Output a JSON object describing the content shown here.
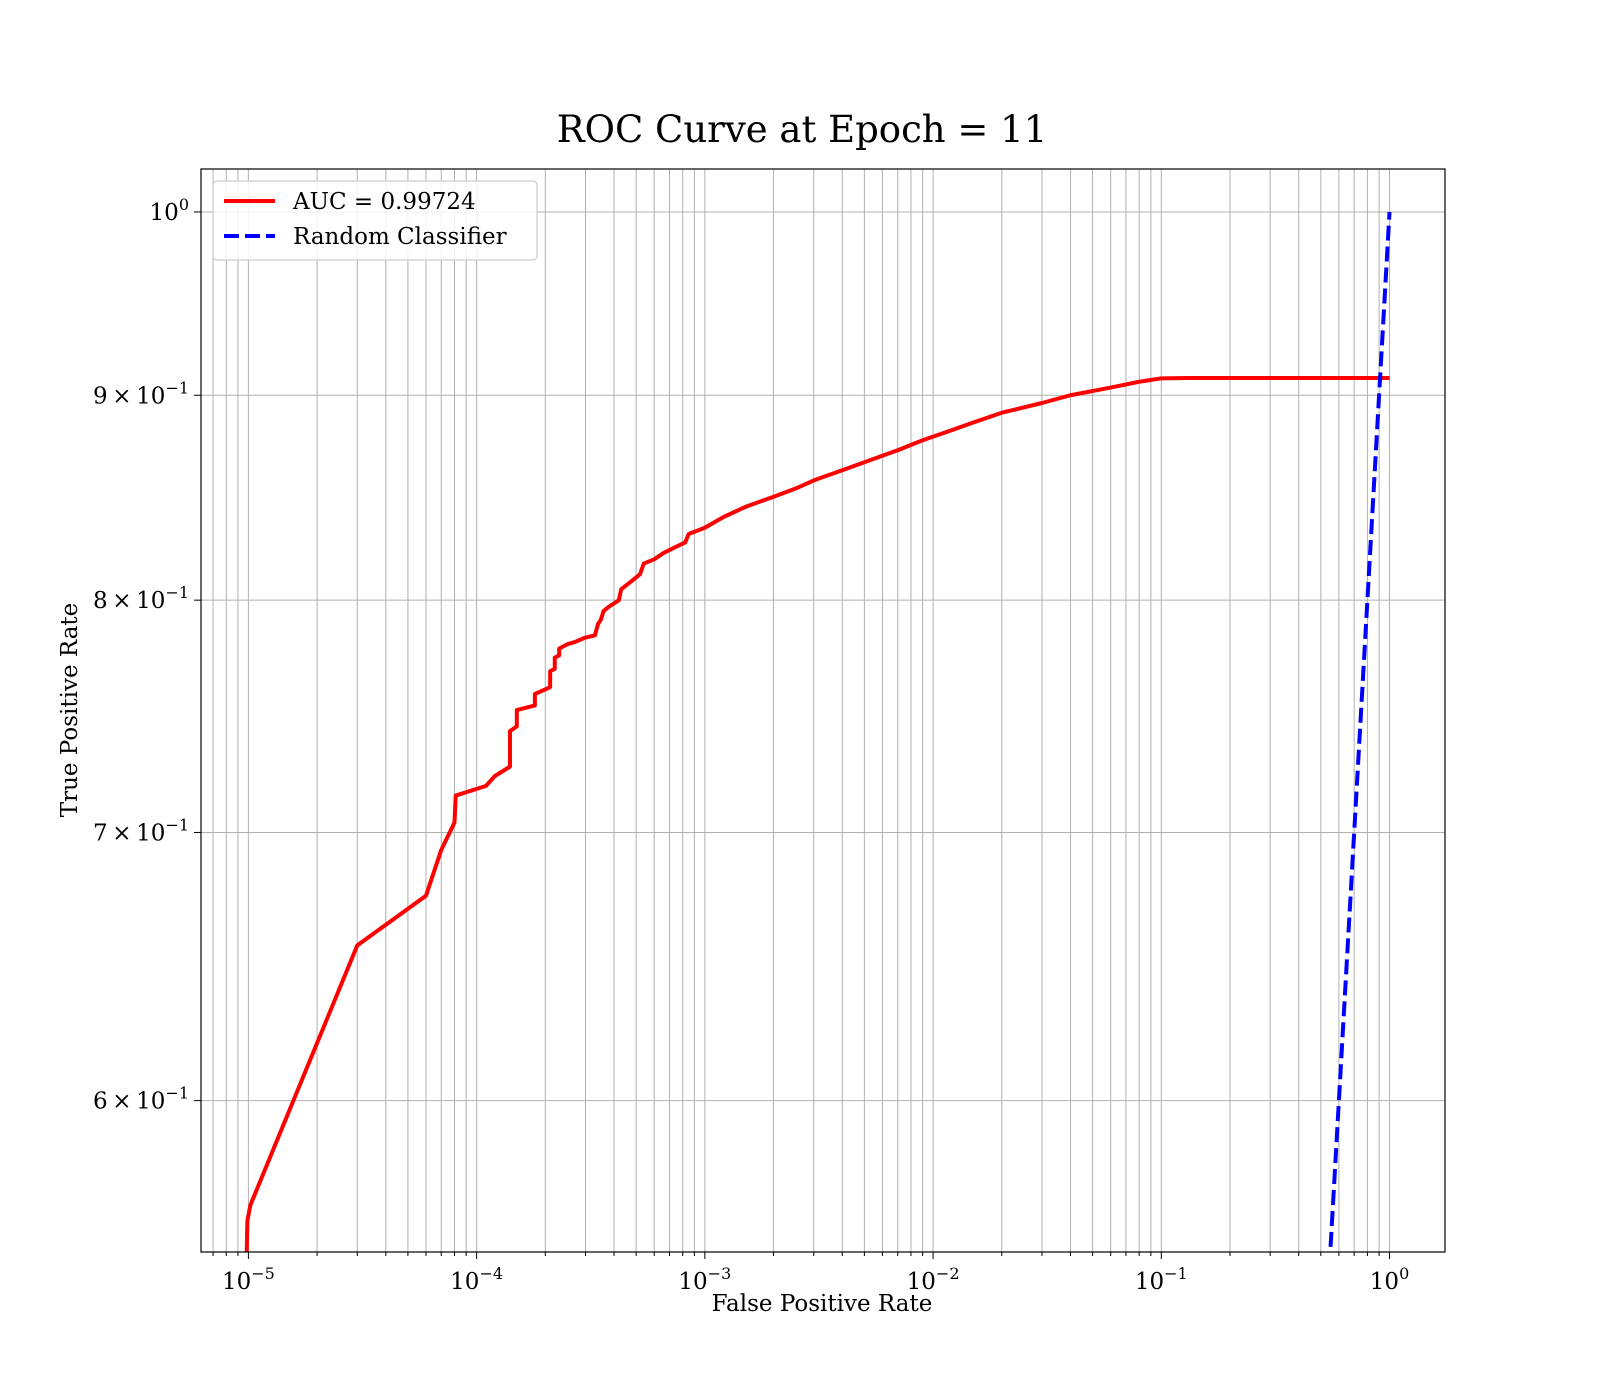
{
  "chart_data": {
    "type": "line",
    "title": "ROC Curve at Epoch = 11",
    "xlabel": "False Positive Rate",
    "ylabel": "True Positive Rate",
    "xscale": "log",
    "yscale": "log",
    "xlim": [
      6.2e-06,
      1.75
    ],
    "ylim": [
      0.55,
      1.025
    ],
    "grid": true,
    "grid_minor": true,
    "legend_position": "top-left",
    "x_ticks": [
      {
        "value": 1e-05,
        "base": "10",
        "exp": "−5"
      },
      {
        "value": 0.0001,
        "base": "10",
        "exp": "−4"
      },
      {
        "value": 0.001,
        "base": "10",
        "exp": "−3"
      },
      {
        "value": 0.01,
        "base": "10",
        "exp": "−2"
      },
      {
        "value": 0.1,
        "base": "10",
        "exp": "−1"
      },
      {
        "value": 1,
        "base": "10",
        "exp": "0"
      }
    ],
    "y_ticks": [
      {
        "value": 0.6,
        "mant": "6",
        "base": "10",
        "exp": "−1"
      },
      {
        "value": 0.7,
        "mant": "7",
        "base": "10",
        "exp": "−1"
      },
      {
        "value": 0.8,
        "mant": "8",
        "base": "10",
        "exp": "−1"
      },
      {
        "value": 0.9,
        "mant": "9",
        "base": "10",
        "exp": "−1"
      },
      {
        "value": 1.0,
        "mant": "",
        "base": "10",
        "exp": "0"
      }
    ],
    "series": [
      {
        "name": "AUC = 0.99724",
        "color": "#ff0000",
        "style": "solid",
        "points": [
          [
            9.8e-06,
            0.545
          ],
          [
            9.9e-06,
            0.56
          ],
          [
            1.02e-05,
            0.565
          ],
          [
            3e-05,
            0.656
          ],
          [
            6e-05,
            0.675
          ],
          [
            7e-05,
            0.693
          ],
          [
            8e-05,
            0.704
          ],
          [
            8.1e-05,
            0.715
          ],
          [
            0.00011,
            0.719
          ],
          [
            0.00012,
            0.723
          ],
          [
            0.00014,
            0.727
          ],
          [
            0.00014,
            0.742
          ],
          [
            0.00015,
            0.744
          ],
          [
            0.00015,
            0.751
          ],
          [
            0.00018,
            0.753
          ],
          [
            0.00018,
            0.758
          ],
          [
            0.0002,
            0.76
          ],
          [
            0.00021,
            0.761
          ],
          [
            0.00021,
            0.768
          ],
          [
            0.00022,
            0.769
          ],
          [
            0.00022,
            0.774
          ],
          [
            0.00023,
            0.775
          ],
          [
            0.00023,
            0.778
          ],
          [
            0.00025,
            0.78
          ],
          [
            0.00027,
            0.781
          ],
          [
            0.0003,
            0.783
          ],
          [
            0.00033,
            0.784
          ],
          [
            0.00034,
            0.789
          ],
          [
            0.00035,
            0.791
          ],
          [
            0.00036,
            0.795
          ],
          [
            0.00038,
            0.797
          ],
          [
            0.00042,
            0.8
          ],
          [
            0.00043,
            0.805
          ],
          [
            0.00048,
            0.809
          ],
          [
            0.00052,
            0.812
          ],
          [
            0.00054,
            0.817
          ],
          [
            0.0006,
            0.819
          ],
          [
            0.00066,
            0.822
          ],
          [
            0.00075,
            0.825
          ],
          [
            0.00082,
            0.827
          ],
          [
            0.00085,
            0.831
          ],
          [
            0.001,
            0.834
          ],
          [
            0.0012,
            0.839
          ],
          [
            0.0015,
            0.844
          ],
          [
            0.002,
            0.849
          ],
          [
            0.0025,
            0.853
          ],
          [
            0.003,
            0.857
          ],
          [
            0.004,
            0.862
          ],
          [
            0.005,
            0.866
          ],
          [
            0.007,
            0.872
          ],
          [
            0.009,
            0.877
          ],
          [
            0.012,
            0.882
          ],
          [
            0.015,
            0.886
          ],
          [
            0.02,
            0.891
          ],
          [
            0.03,
            0.896
          ],
          [
            0.04,
            0.9
          ],
          [
            0.06,
            0.904
          ],
          [
            0.08,
            0.907
          ],
          [
            0.1,
            0.9088
          ],
          [
            0.13,
            0.909
          ],
          [
            1.0,
            0.909
          ]
        ]
      },
      {
        "name": "Random Classifier",
        "color": "#0000ff",
        "style": "dashed",
        "points": [
          [
            0.545,
            0.545
          ],
          [
            1.0,
            1.0
          ]
        ]
      }
    ]
  }
}
